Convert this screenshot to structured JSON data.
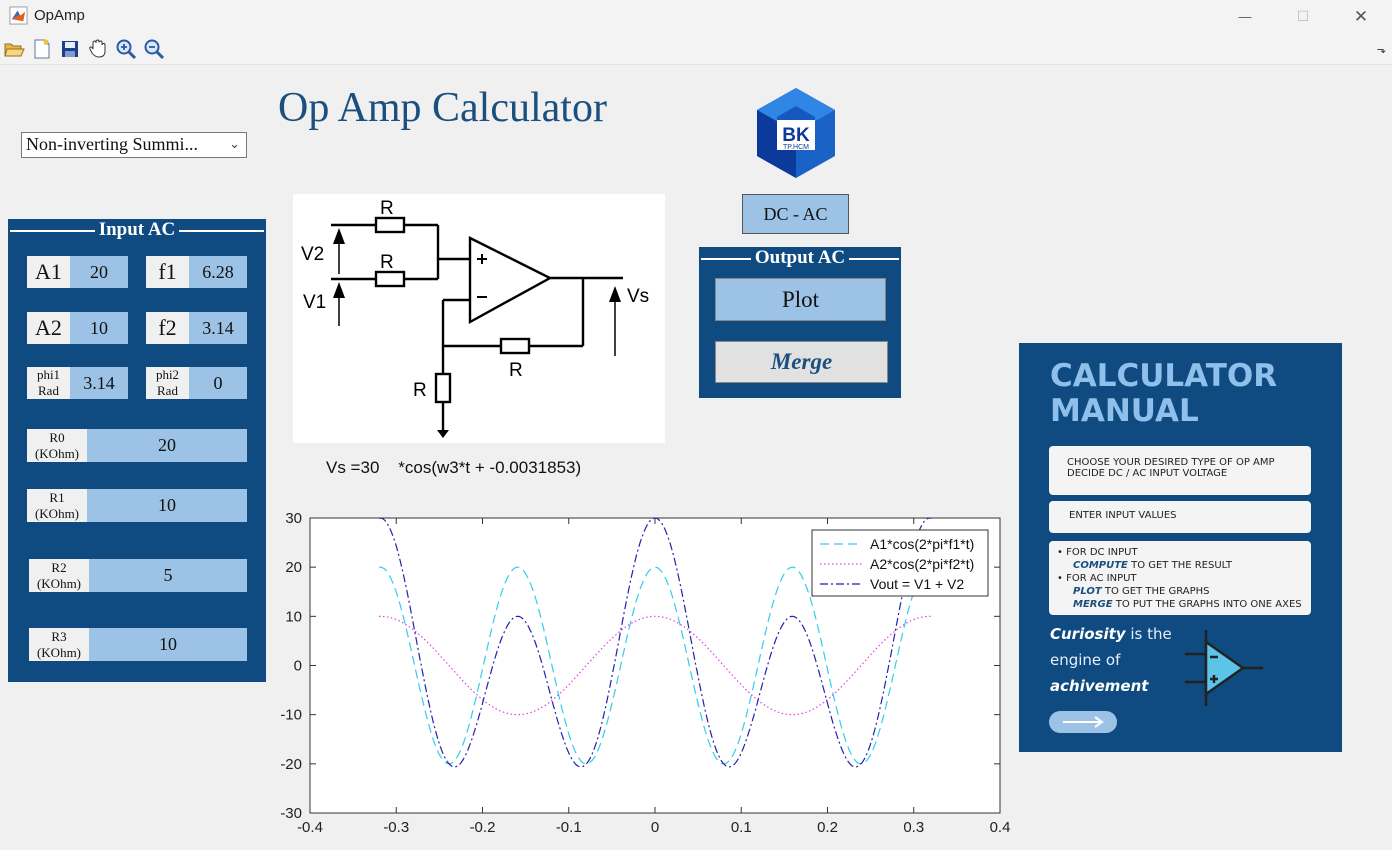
{
  "window": {
    "title": "OpAmp",
    "minimize": "—",
    "maximize": "☐",
    "close": "✕"
  },
  "toolbar": {
    "dock": "⬎"
  },
  "main_title": "Op Amp Calculator",
  "dropdown": {
    "selected": "Non-inverting Summi..."
  },
  "input_panel": {
    "title": "Input AC",
    "a1": {
      "label": "A1",
      "value": "20"
    },
    "f1": {
      "label": "f1",
      "value": "6.28"
    },
    "a2": {
      "label": "A2",
      "value": "10"
    },
    "f2": {
      "label": "f2",
      "value": "3.14"
    },
    "phi1": {
      "label_top": "phi1",
      "label_bottom": "Rad",
      "value": "3.14"
    },
    "phi2": {
      "label_top": "phi2",
      "label_bottom": "Rad",
      "value": "0"
    },
    "r0": {
      "label_top": "R0",
      "label_bottom": "(KOhm)",
      "value": "20"
    },
    "r1": {
      "label_top": "R1",
      "label_bottom": "(KOhm)",
      "value": "10"
    },
    "r2": {
      "label_top": "R2",
      "label_bottom": "(KOhm)",
      "value": "5"
    },
    "r3": {
      "label_top": "R3",
      "label_bottom": "(KOhm)",
      "value": "10"
    }
  },
  "circuit": {
    "v2": "V2",
    "v1": "V1",
    "vs": "Vs",
    "r": "R"
  },
  "formula": "Vs =30    *cos(w3*t + -0.0031853)",
  "logo": {
    "line1": "BK",
    "line2": "TP.HCM"
  },
  "dcac_button": "DC - AC",
  "output_panel": {
    "title": "Output AC",
    "plot": "Plot",
    "merge": "Merge"
  },
  "chart_data": {
    "type": "line",
    "xlim": [
      -0.4,
      0.4
    ],
    "ylim": [
      -30,
      30
    ],
    "xticks": [
      "-0.4",
      "-0.3",
      "-0.2",
      "-0.1",
      "0",
      "0.1",
      "0.2",
      "0.3",
      "0.4"
    ],
    "yticks": [
      "30",
      "20",
      "10",
      "0",
      "-10",
      "-20",
      "-30"
    ],
    "x_range": [
      -0.32,
      0.32
    ],
    "legend_position": "top-right",
    "grid": false,
    "series": [
      {
        "name": "A1*cos(2*pi*f1*t)",
        "amplitude": 20,
        "frequency": 6.28,
        "phase": 0,
        "color": "#33ccee",
        "style": "dashed"
      },
      {
        "name": "A2*cos(2*pi*f2*t)",
        "amplitude": 10,
        "frequency": 3.14,
        "phase": 0,
        "color": "#e040e0",
        "style": "dotted"
      },
      {
        "name": "Vout = V1 + V2",
        "amplitude": 30,
        "frequency": 0,
        "phase": 0,
        "color": "#2222aa",
        "style": "dashdot"
      }
    ]
  },
  "manual": {
    "title_line1": "CALCULATOR",
    "title_line2": "MANUAL",
    "card1": [
      "CHOOSE YOUR DESIRED TYPE OF OP AMP",
      "DECIDE DC / AC INPUT VOLTAGE"
    ],
    "card2": "ENTER INPUT VALUES",
    "card3": {
      "b1": "FOR DC INPUT",
      "b1_hl": "COMPUTE",
      "b1_rest": " TO GET THE RESULT",
      "b2": "FOR AC INPUT",
      "b2_hl": "PLOT",
      "b2_rest": " TO GET THE GRAPHS",
      "b3_hl": "MERGE",
      "b3_rest": " TO PUT THE GRAPHS INTO ONE AXES"
    },
    "quote": {
      "w1": "Curiosity",
      "w2": " is the",
      "w3": "engine of",
      "w4": "achivement"
    }
  },
  "colors": {
    "panel": "#0f4b80",
    "field": "#9cc3e6",
    "title": "#1a4f7e"
  }
}
